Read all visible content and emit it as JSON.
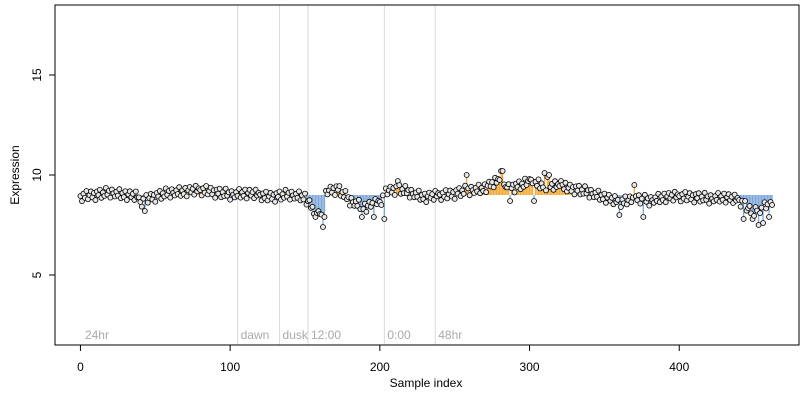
{
  "chart_data": {
    "type": "scatter",
    "title": "",
    "xlabel": "Sample index",
    "ylabel": "Expression",
    "xlim": [
      -17,
      480
    ],
    "ylim": [
      1.5,
      18.5
    ],
    "baseline": 9,
    "x_ticks": [
      0,
      100,
      200,
      300,
      400
    ],
    "x_tick_labels": [
      "0",
      "100",
      "200",
      "300",
      "400"
    ],
    "y_ticks": [
      5,
      10,
      15
    ],
    "y_tick_labels": [
      "5",
      "10",
      "15"
    ],
    "grid": false,
    "legend": "none",
    "colors": {
      "above": "#f4a733",
      "below": "#7ea6d8",
      "point_edge": "#000000",
      "point_fill": "#e8e8e8",
      "vline": "#d9d9d9",
      "marker_text": "#a9a9a9"
    },
    "vlines": [
      {
        "x": 105,
        "label": "dawn"
      },
      {
        "x": 133,
        "label": "dusk"
      },
      {
        "x": 152,
        "label": "12:00"
      },
      {
        "x": 203,
        "label": "0:00"
      },
      {
        "x": 237,
        "label": "48hr"
      }
    ],
    "corner_label": {
      "x": 3,
      "text": "24hr"
    },
    "marker_label_y": 2,
    "anchors": [
      [
        0,
        8.9
      ],
      [
        8,
        9.0
      ],
      [
        20,
        9.1
      ],
      [
        32,
        9.0
      ],
      [
        38,
        8.9
      ],
      [
        40,
        8.6
      ],
      [
        48,
        8.9
      ],
      [
        60,
        9.1
      ],
      [
        72,
        9.2
      ],
      [
        85,
        9.2
      ],
      [
        100,
        9.0
      ],
      [
        110,
        9.1
      ],
      [
        125,
        8.9
      ],
      [
        140,
        9.0
      ],
      [
        150,
        8.9
      ],
      [
        155,
        8.3
      ],
      [
        160,
        8.0
      ],
      [
        165,
        9.2
      ],
      [
        172,
        9.3
      ],
      [
        180,
        8.7
      ],
      [
        190,
        8.4
      ],
      [
        200,
        8.6
      ],
      [
        205,
        9.2
      ],
      [
        212,
        9.3
      ],
      [
        220,
        9.1
      ],
      [
        230,
        8.9
      ],
      [
        245,
        9.0
      ],
      [
        258,
        9.2
      ],
      [
        268,
        9.3
      ],
      [
        280,
        9.7
      ],
      [
        290,
        9.4
      ],
      [
        300,
        9.6
      ],
      [
        310,
        9.5
      ],
      [
        320,
        9.4
      ],
      [
        330,
        9.3
      ],
      [
        340,
        9.1
      ],
      [
        350,
        8.9
      ],
      [
        360,
        8.6
      ],
      [
        370,
        8.8
      ],
      [
        380,
        8.7
      ],
      [
        390,
        8.9
      ],
      [
        400,
        8.9
      ],
      [
        410,
        8.9
      ],
      [
        420,
        8.8
      ],
      [
        430,
        8.9
      ],
      [
        440,
        8.7
      ],
      [
        448,
        8.2
      ],
      [
        455,
        8.3
      ],
      [
        462,
        8.5
      ]
    ],
    "jitter": [
      0.05,
      -0.22,
      0.14,
      -0.08,
      0.25,
      -0.17,
      0.02,
      0.19,
      -0.12,
      0.09,
      -0.27,
      0.15,
      -0.04,
      0.22,
      -0.19,
      0.07,
      -0.11,
      0.28,
      -0.06,
      0.12,
      -0.23,
      0.18,
      0.0,
      -0.15,
      0.1,
      -0.09,
      0.24,
      -0.2,
      0.06,
      -0.13,
      0.17,
      -0.26,
      0.03,
      0.2,
      -0.07,
      0.11,
      -0.18,
      0.26,
      -0.02,
      0.13
    ],
    "outliers": [
      [
        43,
        8.2
      ],
      [
        157,
        7.9
      ],
      [
        162,
        7.4
      ],
      [
        163,
        7.9
      ],
      [
        188,
        7.9
      ],
      [
        196,
        7.9
      ],
      [
        203,
        7.8
      ],
      [
        212,
        9.7
      ],
      [
        258,
        10.0
      ],
      [
        281,
        10.2
      ],
      [
        282,
        10.2
      ],
      [
        284,
        9.4
      ],
      [
        287,
        8.7
      ],
      [
        300,
        9.8
      ],
      [
        303,
        8.7
      ],
      [
        310,
        10.1
      ],
      [
        312,
        9.9
      ],
      [
        313,
        10.0
      ],
      [
        321,
        9.7
      ],
      [
        360,
        8.0
      ],
      [
        370,
        9.5
      ],
      [
        376,
        7.9
      ],
      [
        443,
        7.8
      ],
      [
        449,
        7.8
      ],
      [
        453,
        7.5
      ],
      [
        456,
        7.6
      ],
      [
        460,
        7.9
      ]
    ],
    "n_points": 463
  }
}
